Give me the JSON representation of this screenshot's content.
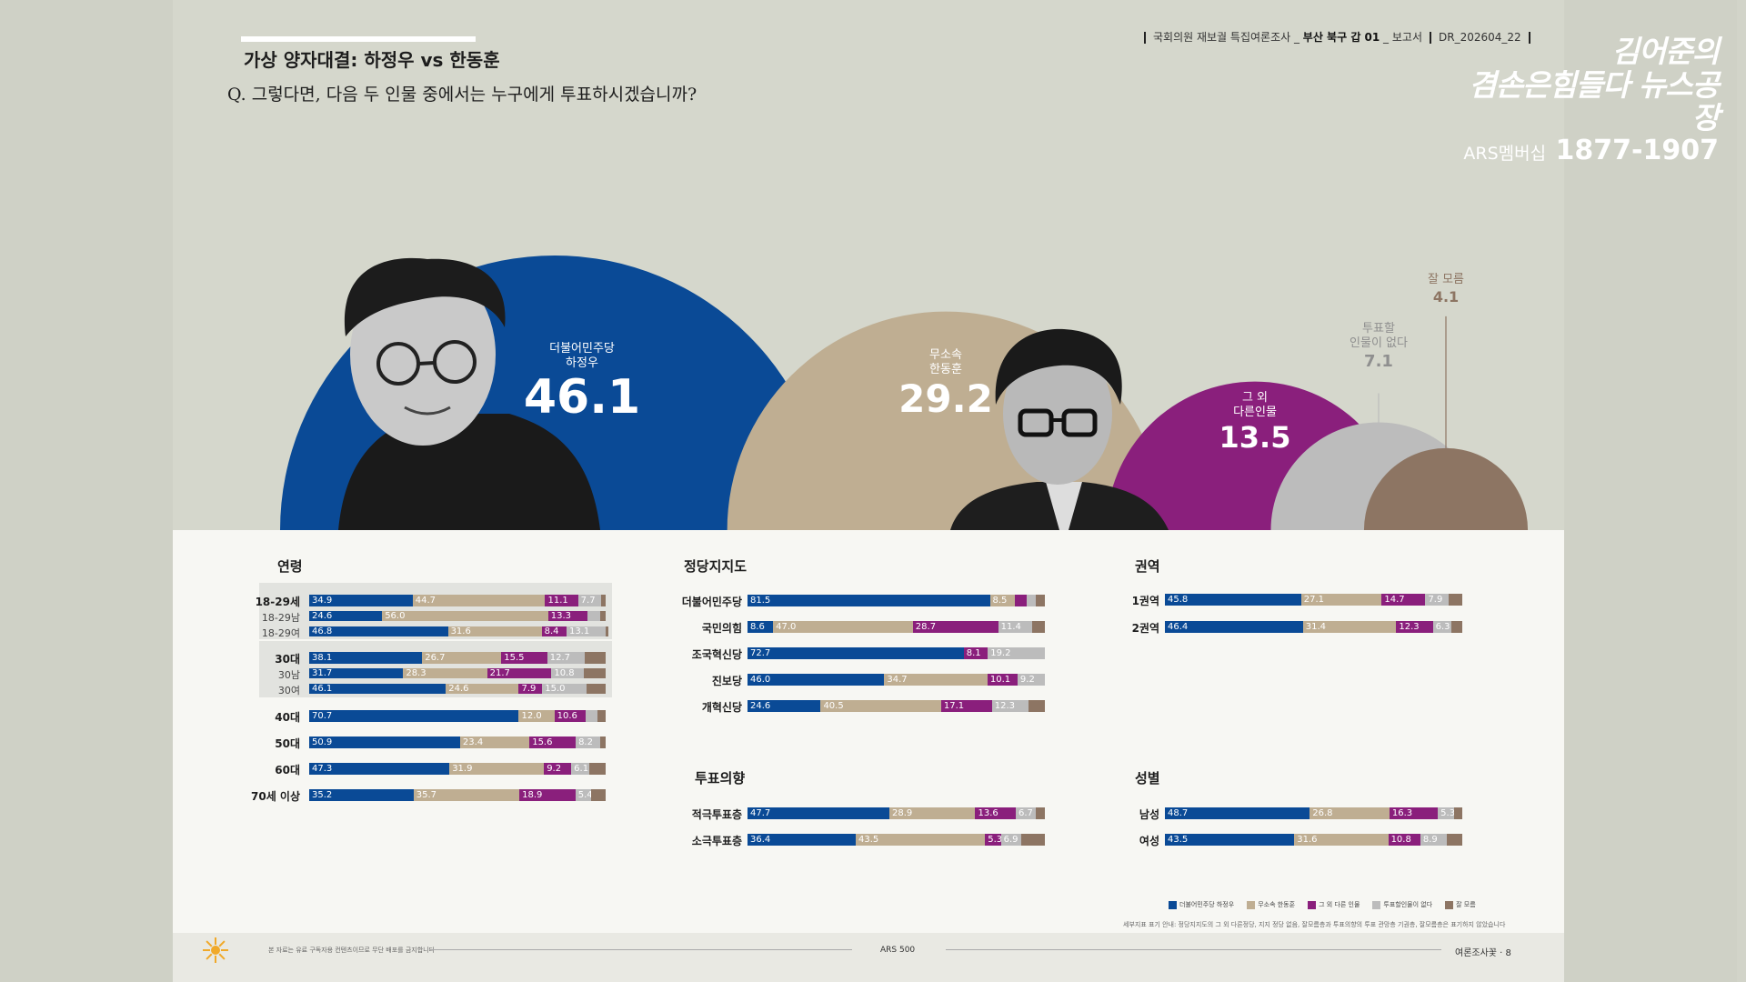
{
  "header": {
    "title": "가상 양자대결: 하정우 vs 한동훈",
    "question": "Q. 그렇다면, 다음 두 인물 중에서는 누구에게 투표하시겠습니까?",
    "meta_survey": "국회의원 재보궐 특집여론조사",
    "meta_district": "부산 북구 갑 01",
    "meta_report": "보고서",
    "meta_code": "DR_202604_22"
  },
  "logo": {
    "line1": "김어준의",
    "line2": "겸손은힘들다 뉴스공장",
    "membership": "ARS멤버십",
    "number": "1877-1907"
  },
  "colors": {
    "blue": "#0a4a96",
    "tan": "#bfae92",
    "purple": "#8a1f7c",
    "gray": "#bcbcbc",
    "brown": "#8d7563"
  },
  "chart_data": [
    {
      "type": "bubble",
      "title": "가상 양자대결: 하정우 vs 한동훈",
      "series": [
        {
          "name": "더불어민주당 하정우",
          "label_top": "더불어민주당",
          "label_name": "하정우",
          "value": 46.1
        },
        {
          "name": "무소속 한동훈",
          "label_top": "무소속",
          "label_name": "한동훈",
          "value": 29.2
        },
        {
          "name": "그 외 다른인물",
          "label_top": "그 외",
          "label_name": "다른인물",
          "value": 13.5
        },
        {
          "name": "투표할 인물이 없다",
          "label_top": "투표할",
          "label_name": "인물이 없다",
          "value": 7.1
        },
        {
          "name": "잘 모름",
          "label_top": "잘 모름",
          "label_name": "",
          "value": 4.1
        }
      ]
    },
    {
      "type": "bar",
      "title": "연령",
      "stacked": true,
      "rows": [
        {
          "label": "18-29세",
          "values": [
            34.9,
            44.7,
            11.1,
            7.7,
            1.6
          ]
        },
        {
          "label": "18-29남",
          "values": [
            24.6,
            56.0,
            13.3,
            4.3,
            1.8
          ]
        },
        {
          "label": "18-29여",
          "values": [
            46.8,
            31.6,
            8.4,
            13.1,
            0.1
          ]
        },
        {
          "label": "30대",
          "values": [
            38.1,
            26.7,
            15.5,
            12.7,
            7.0
          ]
        },
        {
          "label": "30남",
          "values": [
            31.7,
            28.3,
            21.7,
            10.8,
            7.5
          ]
        },
        {
          "label": "30여",
          "values": [
            46.1,
            24.6,
            7.9,
            15.0,
            6.4
          ]
        },
        {
          "label": "40대",
          "values": [
            70.7,
            12.0,
            10.6,
            4.0,
            2.7
          ]
        },
        {
          "label": "50대",
          "values": [
            50.9,
            23.4,
            15.6,
            8.2,
            1.9
          ]
        },
        {
          "label": "60대",
          "values": [
            47.3,
            31.9,
            9.2,
            6.1,
            5.5
          ]
        },
        {
          "label": "70세 이상",
          "values": [
            35.2,
            35.7,
            18.9,
            5.4,
            4.8
          ]
        }
      ]
    },
    {
      "type": "bar",
      "title": "정당지지도",
      "stacked": true,
      "rows": [
        {
          "label": "더불어민주당",
          "values": [
            81.5,
            8.5,
            4.0,
            3.0,
            3.0
          ]
        },
        {
          "label": "국민의힘",
          "values": [
            8.6,
            47.0,
            28.7,
            11.4,
            4.3
          ]
        },
        {
          "label": "조국혁신당",
          "values": [
            72.7,
            0,
            8.1,
            19.2,
            0
          ]
        },
        {
          "label": "진보당",
          "values": [
            46.0,
            34.7,
            10.1,
            9.2,
            0
          ]
        },
        {
          "label": "개혁신당",
          "values": [
            24.6,
            40.5,
            17.1,
            12.3,
            5.4
          ]
        }
      ]
    },
    {
      "type": "bar",
      "title": "권역",
      "stacked": true,
      "rows": [
        {
          "label": "1권역",
          "values": [
            45.8,
            27.1,
            14.7,
            7.9,
            4.5
          ]
        },
        {
          "label": "2권역",
          "values": [
            46.4,
            31.4,
            12.3,
            6.3,
            3.6
          ]
        }
      ]
    },
    {
      "type": "bar",
      "title": "투표의향",
      "stacked": true,
      "rows": [
        {
          "label": "적극투표층",
          "values": [
            47.7,
            28.9,
            13.6,
            6.7,
            3.1
          ]
        },
        {
          "label": "소극투표층",
          "values": [
            36.4,
            43.5,
            5.3,
            6.9,
            7.9
          ]
        }
      ]
    },
    {
      "type": "bar",
      "title": "성별",
      "stacked": true,
      "rows": [
        {
          "label": "남성",
          "values": [
            48.7,
            26.8,
            16.3,
            5.3,
            2.9
          ]
        },
        {
          "label": "여성",
          "values": [
            43.5,
            31.6,
            10.8,
            8.9,
            5.2
          ]
        }
      ]
    }
  ],
  "legend": [
    {
      "label": "더불어민주당 하정우",
      "color": "#0a4a96"
    },
    {
      "label": "무소속 한동훈",
      "color": "#bfae92"
    },
    {
      "label": "그 외 다른 인물",
      "color": "#8a1f7c"
    },
    {
      "label": "투표할인물이 없다",
      "color": "#bcbcbc"
    },
    {
      "label": "잘 모름",
      "color": "#8d7563"
    }
  ],
  "footer": {
    "note": "세부지표 표기 안내: 정당지지도의 그 외 다른정당, 지지 정당 없음, 잘모름층과 투표의향의 투표 관망층 기권층, 잘모름층은 표기하지 않았습니다",
    "copyright": "본 자료는 유료 구독자용 컨텐츠이므로 무단 배포를 금지합니다",
    "center": "ARS 500",
    "right": "여론조사꽃 · 8"
  }
}
